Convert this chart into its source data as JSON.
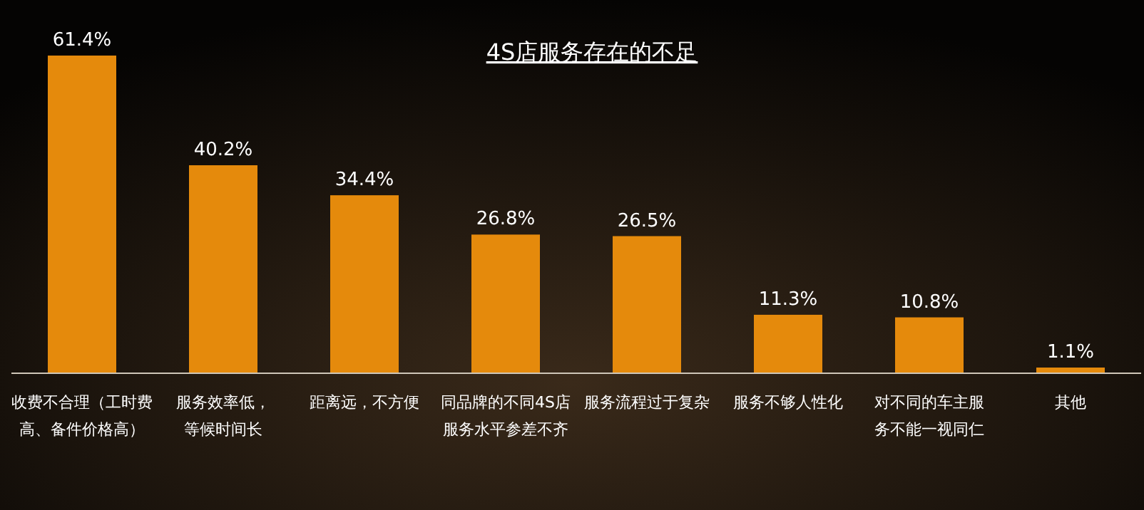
{
  "chart_data": {
    "type": "bar",
    "title": "4S店服务存在的不足",
    "categories": [
      "收费不合理（工时费高、备件价格高）",
      "服务效率低，等候时间长",
      "距离远，不方便",
      "同品牌的不同4S店服务水平参差不齐",
      "服务流程过于复杂",
      "服务不够人性化",
      "对不同的车主服务不能一视同仁",
      "其他"
    ],
    "values": [
      61.4,
      40.2,
      34.4,
      26.8,
      26.5,
      11.3,
      10.8,
      1.1
    ],
    "value_labels": [
      "61.4%",
      "40.2%",
      "34.4%",
      "26.8%",
      "26.5%",
      "11.3%",
      "10.8%",
      "1.1%"
    ],
    "color": "#e58a0c"
  }
}
